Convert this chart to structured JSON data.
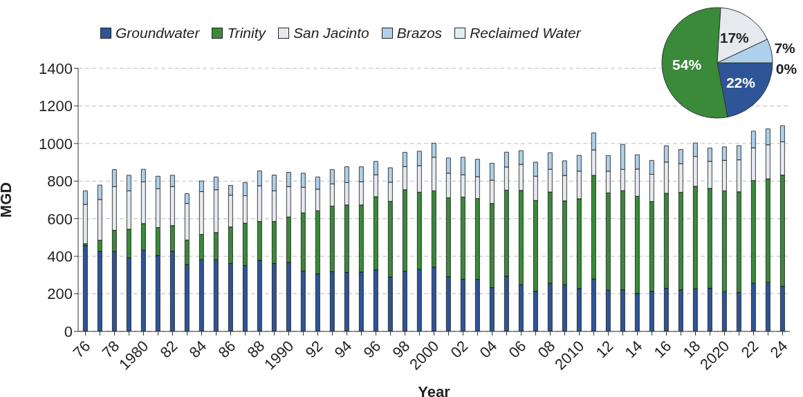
{
  "chart_data": [
    {
      "type": "bar",
      "stacked": true,
      "xlabel": "Year",
      "ylabel": "MGD",
      "ylim": [
        0,
        1400
      ],
      "yticks": [
        0,
        200,
        400,
        600,
        800,
        1000,
        1200,
        1400
      ],
      "grid": "y",
      "legend": "top",
      "categories": [
        "76",
        null,
        "78",
        null,
        "1980",
        null,
        "82",
        null,
        "84",
        null,
        "86",
        null,
        "88",
        null,
        "1990",
        null,
        "92",
        null,
        "94",
        null,
        "96",
        null,
        "98",
        null,
        "2000",
        null,
        "02",
        null,
        "04",
        null,
        "06",
        null,
        "08",
        null,
        "2010",
        null,
        "12",
        null,
        "14",
        null,
        "16",
        null,
        "18",
        null,
        "2020",
        null,
        "22",
        null,
        "24"
      ],
      "series": [
        {
          "name": "Groundwater",
          "color": "#2e5597",
          "values": [
            457,
            425,
            425,
            392,
            432,
            404,
            427,
            355,
            381,
            381,
            362,
            351,
            378,
            362,
            367,
            321,
            306,
            318,
            314,
            316,
            328,
            289,
            320,
            330,
            342,
            291,
            277,
            277,
            233,
            294,
            248,
            213,
            256,
            248,
            228,
            279,
            219,
            221,
            202,
            213,
            229,
            221,
            227,
            229,
            212,
            207,
            256,
            260,
            240
          ]
        },
        {
          "name": "Trinity",
          "color": "#3a8a3a",
          "values": [
            10,
            60,
            113,
            152,
            142,
            149,
            136,
            131,
            135,
            145,
            194,
            225,
            207,
            223,
            242,
            310,
            336,
            349,
            359,
            357,
            389,
            403,
            434,
            411,
            406,
            420,
            438,
            430,
            448,
            458,
            502,
            484,
            486,
            447,
            478,
            551,
            518,
            528,
            517,
            478,
            506,
            519,
            545,
            532,
            536,
            536,
            547,
            552,
            592
          ]
        },
        {
          "name": "San Jacinto",
          "color": "#e6eaee",
          "values": [
            209,
            217,
            233,
            204,
            222,
            206,
            208,
            195,
            228,
            228,
            169,
            146,
            190,
            163,
            162,
            136,
            115,
            118,
            119,
            123,
            117,
            102,
            123,
            141,
            179,
            131,
            119,
            116,
            124,
            123,
            139,
            129,
            121,
            135,
            147,
            136,
            116,
            113,
            145,
            145,
            166,
            153,
            159,
            144,
            162,
            170,
            174,
            181,
            177
          ]
        },
        {
          "name": "Brazos",
          "color": "#aed0ea",
          "values": [
            72,
            77,
            90,
            83,
            67,
            67,
            60,
            52,
            57,
            68,
            52,
            70,
            79,
            84,
            76,
            75,
            65,
            76,
            84,
            80,
            71,
            77,
            76,
            77,
            75,
            81,
            93,
            93,
            90,
            79,
            73,
            75,
            88,
            78,
            84,
            91,
            83,
            133,
            76,
            74,
            87,
            75,
            72,
            71,
            72,
            76,
            89,
            85,
            86
          ]
        },
        {
          "name": "Reclaimed Water",
          "color": "#dff0f5",
          "values": [
            0,
            0,
            0,
            0,
            0,
            0,
            0,
            0,
            0,
            0,
            0,
            0,
            0,
            0,
            0,
            0,
            0,
            0,
            0,
            0,
            0,
            0,
            0,
            0,
            0,
            0,
            0,
            0,
            0,
            0,
            0,
            0,
            0,
            0,
            0,
            0,
            0,
            0,
            0,
            0,
            0,
            0,
            0,
            0,
            0,
            0,
            0,
            0,
            0
          ]
        }
      ]
    },
    {
      "type": "pie",
      "value_labels": [
        "22%",
        "54%",
        "17%",
        "7%",
        "0%"
      ],
      "categories": [
        null,
        null,
        null,
        null,
        null
      ],
      "values": [
        22,
        54,
        17,
        7,
        0
      ],
      "colors": [
        "#2e5597",
        "#3a8a3a",
        "#e6eaee",
        "#aed0ea",
        "#dff0f5"
      ]
    }
  ]
}
